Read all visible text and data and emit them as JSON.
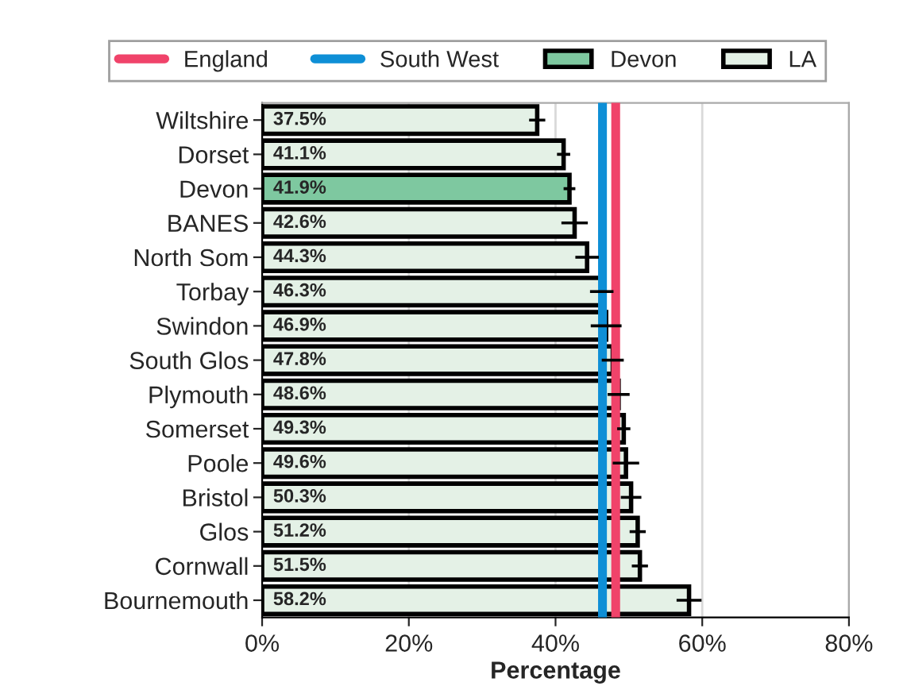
{
  "chart_data": {
    "type": "bar",
    "orientation": "horizontal",
    "xlabel": "Percentage",
    "categories": [
      "Wiltshire",
      "Dorset",
      "Devon",
      "BANES",
      "North Som",
      "Torbay",
      "Swindon",
      "South Glos",
      "Plymouth",
      "Somerset",
      "Poole",
      "Bristol",
      "Glos",
      "Cornwall",
      "Bournemouth"
    ],
    "series": [
      {
        "name": "Devon",
        "color": "#7ec8a0",
        "values": [
          null,
          null,
          41.9,
          null,
          null,
          null,
          null,
          null,
          null,
          null,
          null,
          null,
          null,
          null,
          null
        ],
        "errors": [
          null,
          null,
          0.8,
          null,
          null,
          null,
          null,
          null,
          null,
          null,
          null,
          null,
          null,
          null,
          null
        ],
        "value_labels": [
          null,
          null,
          "41.9%",
          null,
          null,
          null,
          null,
          null,
          null,
          null,
          null,
          null,
          null,
          null,
          null
        ]
      },
      {
        "name": "LA",
        "color": "#e4f1e6",
        "values": [
          37.5,
          41.1,
          null,
          42.6,
          44.3,
          46.3,
          46.9,
          47.8,
          48.6,
          49.3,
          49.6,
          50.3,
          51.2,
          51.5,
          58.2
        ],
        "errors": [
          1.1,
          0.9,
          null,
          1.8,
          1.6,
          1.6,
          2.1,
          1.5,
          1.5,
          0.9,
          1.8,
          1.4,
          1.1,
          1.1,
          1.7
        ],
        "value_labels": [
          "37.5%",
          "41.1%",
          null,
          "42.6%",
          "44.3%",
          "46.3%",
          "46.9%",
          "47.8%",
          "48.6%",
          "49.3%",
          "49.6%",
          "50.3%",
          "51.2%",
          "51.5%",
          "58.2%"
        ]
      }
    ],
    "ref_lines": [
      {
        "axis": "x",
        "value": 48.2,
        "label": "England",
        "color": "#f0436a"
      },
      {
        "axis": "x",
        "value": 46.4,
        "label": "South West",
        "color": "#0e8fd6"
      }
    ],
    "xlim": [
      0,
      80
    ],
    "xticks": [
      {
        "value": 0,
        "label": "0%"
      },
      {
        "value": 20,
        "label": "20%"
      },
      {
        "value": 40,
        "label": "40%"
      },
      {
        "value": 60,
        "label": "60%"
      },
      {
        "value": 80,
        "label": "80%"
      }
    ],
    "grid": "x",
    "legend": "top"
  }
}
